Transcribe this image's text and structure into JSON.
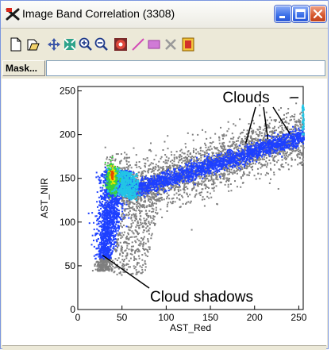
{
  "window": {
    "title": "Image Band Correlation (3308)"
  },
  "toolbar": {
    "icons": [
      "new-icon",
      "open-icon",
      "pan-icon",
      "fit-icon",
      "zoom-in-icon",
      "zoom-out-icon",
      "stop-icon",
      "line-icon",
      "rectangle-icon",
      "delete-icon",
      "export-icon"
    ]
  },
  "mask": {
    "label": "Mask...",
    "value": ""
  },
  "chart_data": {
    "type": "scatter",
    "style": "density-scatter",
    "xlabel": "AST_Red",
    "ylabel": "AST_NIR",
    "xlim": [
      0,
      255
    ],
    "ylim": [
      0,
      255
    ],
    "xticks": [
      0,
      50,
      100,
      150,
      200,
      250
    ],
    "yticks": [
      0,
      50,
      100,
      150,
      200,
      250
    ],
    "annotations": [
      {
        "text": "Clouds",
        "points_to": [
          [
            190,
            190
          ],
          [
            215,
            195
          ],
          [
            240,
            201
          ],
          [
            255,
            207
          ]
        ]
      },
      {
        "text": "Cloud shadows",
        "points_to": [
          [
            28,
            62
          ]
        ]
      }
    ],
    "density_colors": [
      "#7f7f7f",
      "#1e40ff",
      "#22c5e6",
      "#3ad23a",
      "#e6e600",
      "#e64b00"
    ]
  }
}
